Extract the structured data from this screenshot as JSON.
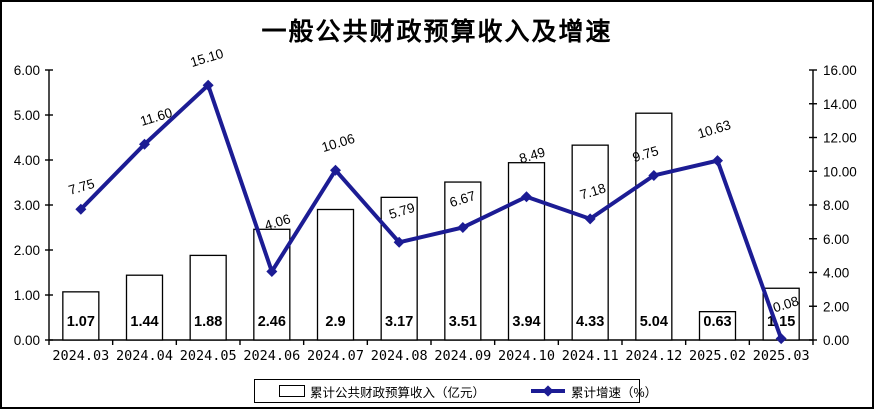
{
  "chart_data": {
    "type": "combo-bar-line",
    "title": "一般公共财政预算收入及增速",
    "categories": [
      "2024.03",
      "2024.04",
      "2024.05",
      "2024.06",
      "2024.07",
      "2024.08",
      "2024.09",
      "2024.10",
      "2024.11",
      "2024.12",
      "2025.02",
      "2025.03"
    ],
    "series": [
      {
        "name": "累计公共财政预算收入（亿元）",
        "type": "bar",
        "axis": "left",
        "values": [
          1.07,
          1.44,
          1.88,
          2.46,
          2.9,
          3.17,
          3.51,
          3.94,
          4.33,
          5.04,
          0.63,
          1.15
        ],
        "labels": [
          "1.07",
          "1.44",
          "1.88",
          "2.46",
          "2.9",
          "3.17",
          "3.51",
          "3.94",
          "4.33",
          "5.04",
          "0.63",
          "1.15"
        ]
      },
      {
        "name": "累计增速（%）",
        "type": "line",
        "axis": "right",
        "values": [
          7.75,
          11.6,
          15.1,
          4.06,
          10.06,
          5.79,
          6.67,
          8.49,
          7.18,
          9.75,
          10.63,
          0.08
        ],
        "labels": [
          "7.75",
          "11.60",
          "15.10",
          "4.06",
          "10.06",
          "5.79",
          "6.67",
          "8.49",
          "7.18",
          "9.75",
          "10.63",
          "0.08"
        ]
      }
    ],
    "left_axis": {
      "min": 0,
      "max": 6,
      "step": 1,
      "tick_labels": [
        "0.00",
        "1.00",
        "2.00",
        "3.00",
        "4.00",
        "5.00",
        "6.00"
      ]
    },
    "right_axis": {
      "min": 0,
      "max": 16,
      "step": 2,
      "tick_labels": [
        "0.00",
        "2.00",
        "4.00",
        "6.00",
        "8.00",
        "10.00",
        "12.00",
        "14.00",
        "16.00"
      ]
    },
    "grid": false,
    "legend_position": "bottom",
    "colors": {
      "line": "#1c1c94",
      "bar_fill": "#ffffff",
      "bar_stroke": "#000000",
      "text": "#000000",
      "background": "#ffffff"
    }
  }
}
